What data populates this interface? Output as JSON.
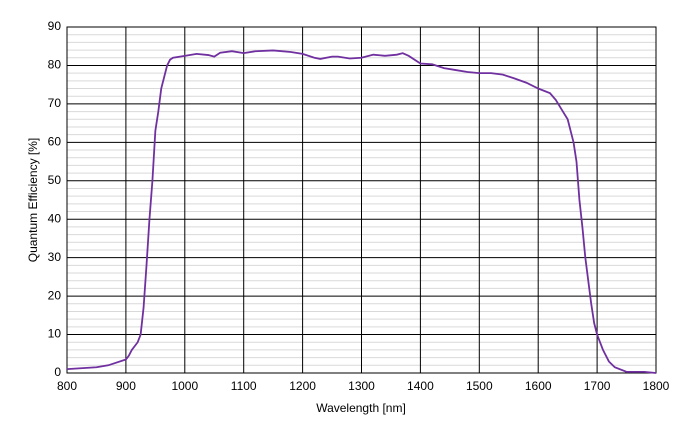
{
  "chart_data": {
    "type": "line",
    "xlabel": "Wavelength [nm]",
    "ylabel": "Quantum Efficiency [%]",
    "xlim": [
      800,
      1800
    ],
    "xticks": [
      800,
      900,
      1000,
      1100,
      1200,
      1300,
      1400,
      1500,
      1600,
      1700,
      1800
    ],
    "ylim": [
      0,
      90
    ],
    "yticks": [
      0,
      10,
      20,
      30,
      40,
      50,
      60,
      70,
      80,
      90
    ],
    "minor_yticks": [
      2,
      4,
      6,
      8,
      12,
      14,
      16,
      18,
      22,
      24,
      26,
      28,
      32,
      34,
      36,
      38,
      42,
      44,
      46,
      48,
      52,
      54,
      56,
      58,
      62,
      64,
      66,
      68,
      72,
      74,
      76,
      78,
      82,
      84,
      86,
      88
    ],
    "grid": true,
    "series": [
      {
        "color": "#7030a0",
        "x": [
          800,
          850,
          870,
          900,
          905,
          910,
          920,
          925,
          930,
          935,
          940,
          945,
          950,
          955,
          960,
          965,
          970,
          975,
          980,
          1000,
          1020,
          1040,
          1050,
          1060,
          1080,
          1100,
          1120,
          1150,
          1180,
          1200,
          1220,
          1230,
          1250,
          1260,
          1280,
          1300,
          1320,
          1340,
          1360,
          1370,
          1380,
          1400,
          1420,
          1440,
          1460,
          1480,
          1500,
          1520,
          1540,
          1560,
          1580,
          1600,
          1620,
          1630,
          1640,
          1650,
          1655,
          1660,
          1665,
          1670,
          1675,
          1680,
          1685,
          1690,
          1695,
          1700,
          1710,
          1720,
          1730,
          1750,
          1780,
          1800
        ],
        "values": [
          1,
          1.5,
          2,
          3.5,
          4.5,
          6,
          8,
          10,
          17,
          28,
          40,
          50,
          63,
          68,
          74,
          77,
          80,
          81.5,
          82,
          82.5,
          83,
          82.7,
          82.3,
          83.3,
          83.7,
          83.2,
          83.7,
          83.9,
          83.5,
          83,
          82,
          81.7,
          82.3,
          82.3,
          81.8,
          82,
          82.8,
          82.5,
          82.8,
          83.2,
          82.5,
          80.5,
          80.3,
          79.3,
          78.8,
          78.3,
          78,
          78,
          77.6,
          76.6,
          75.5,
          74,
          72.8,
          71,
          68.5,
          66,
          63,
          60,
          55,
          45,
          38,
          30,
          24,
          18,
          13,
          10,
          6,
          3,
          1.5,
          0.3,
          0.3,
          0
        ]
      }
    ]
  }
}
